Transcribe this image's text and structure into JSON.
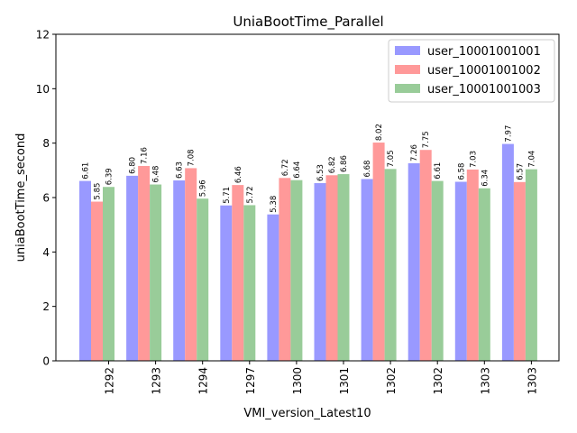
{
  "chart_data": {
    "type": "bar",
    "title": "UniaBootTime_Parallel",
    "xlabel": "VMI_version_Latest10",
    "ylabel": "uniaBootTime_second",
    "ylim": [
      0,
      12
    ],
    "yticks": [
      "0",
      "2",
      "4",
      "6",
      "8",
      "10",
      "12"
    ],
    "grid": false,
    "legend_position": "top-right",
    "categories": [
      "1292",
      "1293",
      "1294",
      "1297",
      "1300",
      "1301",
      "1302",
      "1302",
      "1303",
      "1303"
    ],
    "series": [
      {
        "name": "user_10001001001",
        "color": "#9999ff",
        "values": [
          6.61,
          6.8,
          6.63,
          5.71,
          5.38,
          6.53,
          6.68,
          7.26,
          6.58,
          7.97
        ],
        "labels": [
          "6.61",
          "6.80",
          "6.63",
          "5.71",
          "5.38",
          "6.53",
          "6.68",
          "7.26",
          "6.58",
          "7.97"
        ]
      },
      {
        "name": "user_10001001002",
        "color": "#ff9999",
        "values": [
          5.85,
          7.16,
          7.08,
          6.46,
          6.72,
          6.82,
          8.02,
          7.75,
          7.03,
          6.57
        ],
        "labels": [
          "5.85",
          "7.16",
          "7.08",
          "6.46",
          "6.72",
          "6.82",
          "8.02",
          "7.75",
          "7.03",
          "6.57"
        ]
      },
      {
        "name": "user_10001001003",
        "color": "#99cc99",
        "values": [
          6.39,
          6.48,
          5.96,
          5.72,
          6.64,
          6.86,
          7.05,
          6.61,
          6.34,
          7.04
        ],
        "labels": [
          "6.39",
          "6.48",
          "5.96",
          "5.72",
          "6.64",
          "6.86",
          "7.05",
          "6.61",
          "6.34",
          "7.04"
        ]
      }
    ]
  }
}
